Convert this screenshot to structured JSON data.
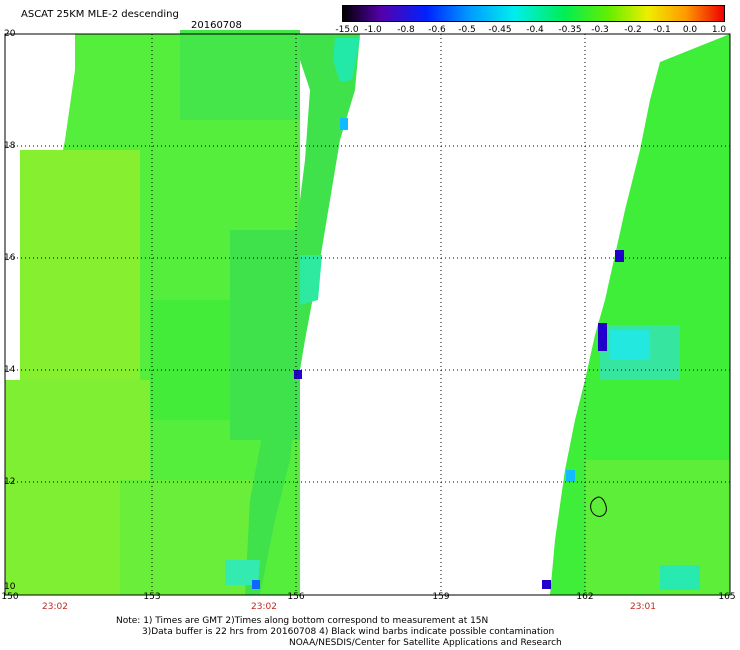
{
  "title": "ASCAT 25KM MLE-2 descending",
  "date": "20160708",
  "colorbar": {
    "labels": [
      "-15.0",
      "-1.0",
      "-0.8",
      "-0.6",
      "-0.5",
      "-0.45",
      "-0.4",
      "-0.35",
      "-0.3",
      "-0.2",
      "-0.1",
      "0.0",
      "1.0"
    ]
  },
  "axes": {
    "lon_ticks": [
      "150",
      "153",
      "156",
      "159",
      "162",
      "165"
    ],
    "lat_ticks": [
      "20",
      "18",
      "16",
      "14",
      "12",
      "10"
    ]
  },
  "swath_times": [
    "23:02",
    "23:02",
    "23:01"
  ],
  "notes": {
    "line1": "Note: 1) Times are GMT 2)Times along bottom correspond to measurement at 15N",
    "line2": "3)Data buffer is 22 hrs from 20160708 4) Black wind barbs indicate possible contamination",
    "line3": "NOAA/NESDIS/Center for Satellite Applications and Research"
  },
  "colors": {
    "dominant": "#33f033",
    "light": "#88f02e",
    "cyan": "#00eeee",
    "flag": "#2200cc"
  }
}
